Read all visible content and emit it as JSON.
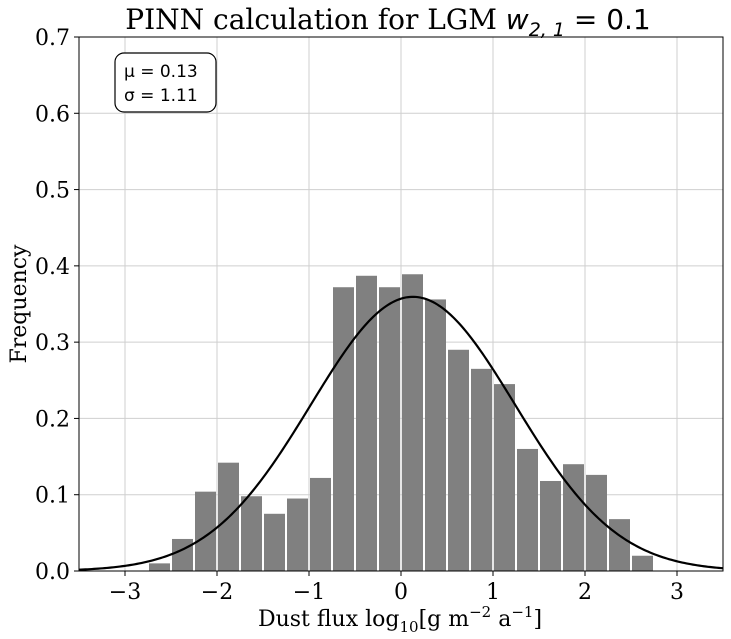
{
  "chart_data": {
    "type": "bar",
    "title_prefix": "PINN calculation for LGM ",
    "title_var": "w",
    "title_sub": "2, 1",
    "title_suffix": " = 0.1",
    "xlabel_prefix": "Dust flux log",
    "xlabel_base": "10",
    "xlabel_bracket_open": "[g m",
    "xlabel_exp1": "−2",
    "xlabel_mid": " a",
    "xlabel_exp2": "−1",
    "xlabel_bracket_close": "]",
    "ylabel": "Frequency",
    "xlim": [
      -3.5,
      3.5
    ],
    "ylim": [
      0,
      0.7
    ],
    "xticks": [
      -3,
      -2,
      -1,
      0,
      1,
      2,
      3
    ],
    "xtick_labels": [
      "−3",
      "−2",
      "−1",
      "0",
      "1",
      "2",
      "3"
    ],
    "yticks": [
      0.0,
      0.1,
      0.2,
      0.3,
      0.4,
      0.5,
      0.6,
      0.7
    ],
    "ytick_labels": [
      "0.0",
      "0.1",
      "0.2",
      "0.3",
      "0.4",
      "0.5",
      "0.6",
      "0.7"
    ],
    "grid": true,
    "bar_color": "#808080",
    "bin_width": 0.25,
    "bin_left_edges": [
      -2.75,
      -2.5,
      -2.25,
      -2.0,
      -1.75,
      -1.5,
      -1.25,
      -1.0,
      -0.75,
      -0.5,
      -0.25,
      0.0,
      0.25,
      0.5,
      0.75,
      1.0,
      1.25,
      1.5,
      1.75,
      2.0,
      2.25,
      2.5
    ],
    "values": [
      0.01,
      0.042,
      0.104,
      0.142,
      0.098,
      0.075,
      0.095,
      0.122,
      0.372,
      0.387,
      0.372,
      0.389,
      0.356,
      0.29,
      0.265,
      0.245,
      0.16,
      0.118,
      0.14,
      0.126,
      0.068,
      0.02
    ],
    "fit": {
      "mu": 0.13,
      "sigma": 1.11,
      "color": "#000000"
    },
    "stats_box": {
      "mu_line": "μ = 0.13",
      "sigma_line": "σ = 1.11",
      "position": "top-left"
    }
  }
}
